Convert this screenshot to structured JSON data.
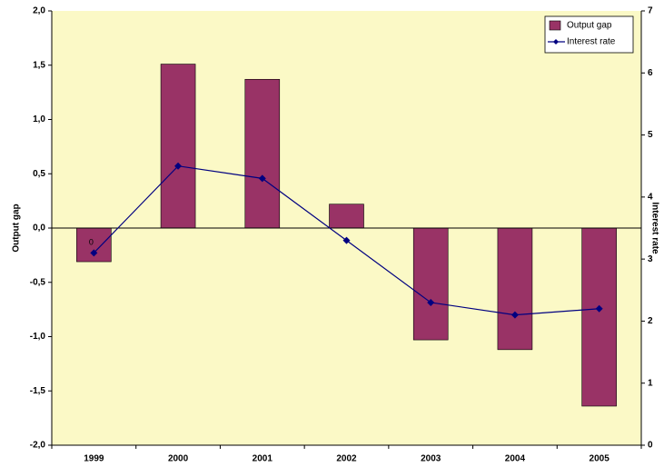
{
  "chart_data": {
    "type": "bar_line",
    "categories": [
      "1999",
      "2000",
      "2001",
      "2002",
      "2003",
      "2004",
      "2005"
    ],
    "series": [
      {
        "name": "Output gap",
        "color": "#993366",
        "type": "bar",
        "values": [
          -0.31,
          1.51,
          1.37,
          0.22,
          -1.03,
          -1.12,
          -1.64
        ]
      },
      {
        "name": "Interest rate",
        "color": "#000080",
        "type": "line",
        "axis": "y2",
        "values": [
          3.1,
          4.5,
          4.3,
          3.3,
          2.3,
          2.1,
          2.2
        ]
      }
    ],
    "ylabel": "Output gap",
    "y2label": "Interest rate",
    "ylim": [
      -2,
      2
    ],
    "yticks": [
      {
        "value": -2,
        "label": "-2,0"
      },
      {
        "value": -1.5,
        "label": "-1,5"
      },
      {
        "value": -1,
        "label": "-1,0"
      },
      {
        "value": -0.5,
        "label": "-0,5"
      },
      {
        "value": 0,
        "label": "0,0"
      },
      {
        "value": 0.5,
        "label": "0,5"
      },
      {
        "value": 1,
        "label": "1,0"
      },
      {
        "value": 1.5,
        "label": "1,5"
      },
      {
        "value": 2,
        "label": "2,0"
      }
    ],
    "y2lim": [
      0,
      7
    ],
    "y2ticks": [
      0,
      1,
      2,
      3,
      4,
      5,
      6,
      7
    ],
    "annotation": "0",
    "legend": "upper right",
    "background": "#fbf9c6"
  }
}
